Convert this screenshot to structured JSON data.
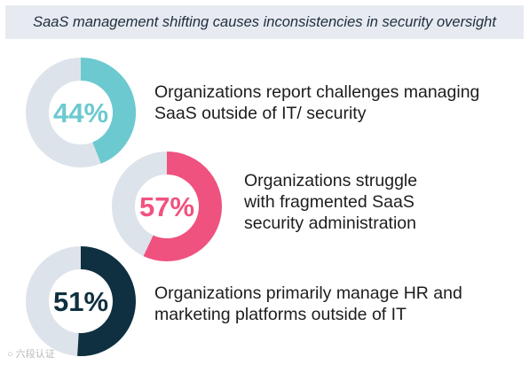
{
  "title": "SaaS management shifting causes inconsistencies in security oversight",
  "watermark": "六段认证",
  "colors": {
    "track": "#dde3ea",
    "stat1": "#6cc9d0",
    "stat2": "#f0527f",
    "stat3": "#0f3040"
  },
  "chart_data": {
    "type": "donut",
    "title": "SaaS management shifting causes inconsistencies in security oversight",
    "items": [
      {
        "value": 44,
        "label": "44%",
        "description": "Organizations report challenges managing SaaS outside of IT/ security",
        "lines": [
          "Organizations report challenges managing",
          "SaaS outside of IT/ security"
        ]
      },
      {
        "value": 57,
        "label": "57%",
        "description": "Organizations struggle with fragmented SaaS security administration",
        "lines": [
          "Organizations struggle",
          "with fragmented SaaS",
          "security administration"
        ]
      },
      {
        "value": 51,
        "label": "51%",
        "description": "Organizations primarily manage HR and marketing platforms outside of IT",
        "lines": [
          "Organizations primarily manage HR and",
          "marketing platforms outside of IT"
        ]
      }
    ]
  }
}
